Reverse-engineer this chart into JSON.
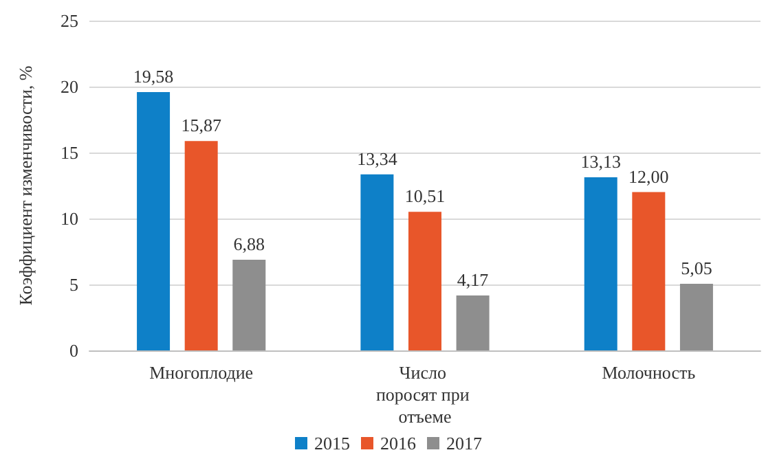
{
  "chart_data": {
    "type": "bar",
    "ylabel": "Коэффициент изменчивости, %",
    "categories": [
      "Многоплодие",
      "Число поросят при отъеме",
      "Молочность"
    ],
    "series": [
      {
        "name": "2015",
        "color": "#0e80c8",
        "values": [
          19.58,
          13.34,
          13.13
        ],
        "value_labels": [
          "19,58",
          "13,34",
          "13,13"
        ]
      },
      {
        "name": "2016",
        "color": "#e8562a",
        "values": [
          15.87,
          10.51,
          12.0
        ],
        "value_labels": [
          "15,87",
          "10,51",
          "12,00"
        ]
      },
      {
        "name": "2017",
        "color": "#8e8e8e",
        "values": [
          6.88,
          4.17,
          5.05
        ],
        "value_labels": [
          "6,88",
          "4,17",
          "5,05"
        ]
      }
    ],
    "ylim": [
      0,
      25
    ],
    "yticks": [
      0,
      5,
      10,
      15,
      20,
      25
    ],
    "grid": "y",
    "legend": "bottom"
  }
}
